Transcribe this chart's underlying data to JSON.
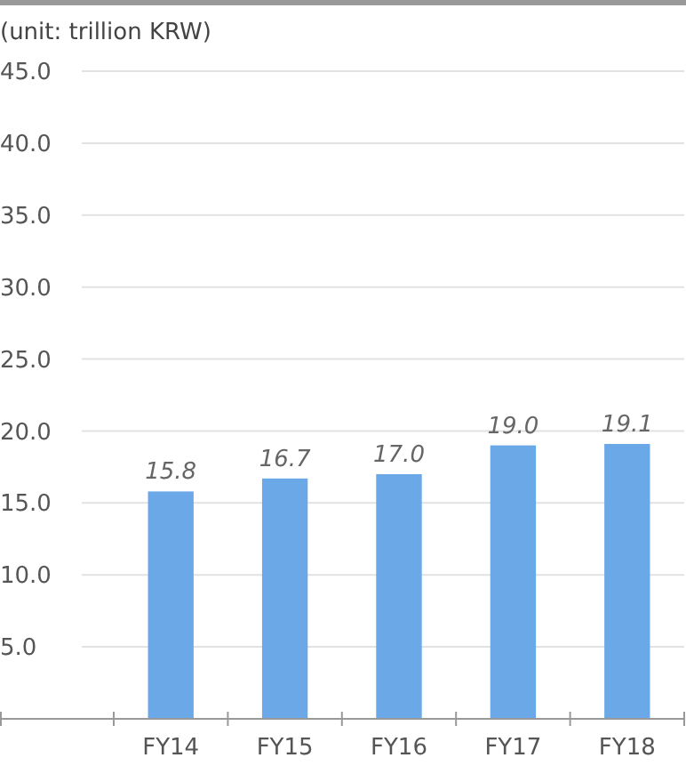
{
  "chart_data": {
    "type": "bar",
    "ylabel": "(unit: trillion KRW)",
    "categories": [
      "FY14",
      "FY15",
      "FY16",
      "FY17",
      "FY18"
    ],
    "values": [
      15.8,
      16.7,
      17.0,
      19.0,
      19.1
    ],
    "color": "#6aa8e8",
    "value_labels": [
      "15.8",
      "16.7",
      "17.0",
      "19.0",
      "19.1"
    ],
    "ylim": [
      0,
      45
    ],
    "yticks": [
      {
        "value": 5,
        "label": "5.0"
      },
      {
        "value": 10,
        "label": "10.0"
      },
      {
        "value": 15,
        "label": "15.0"
      },
      {
        "value": 20,
        "label": "20.0"
      },
      {
        "value": 25,
        "label": "25.0"
      },
      {
        "value": 30,
        "label": "30.0"
      },
      {
        "value": 35,
        "label": "35.0"
      },
      {
        "value": 40,
        "label": "40.0"
      },
      {
        "value": 45,
        "label": "45.0"
      }
    ],
    "grid": "y"
  }
}
